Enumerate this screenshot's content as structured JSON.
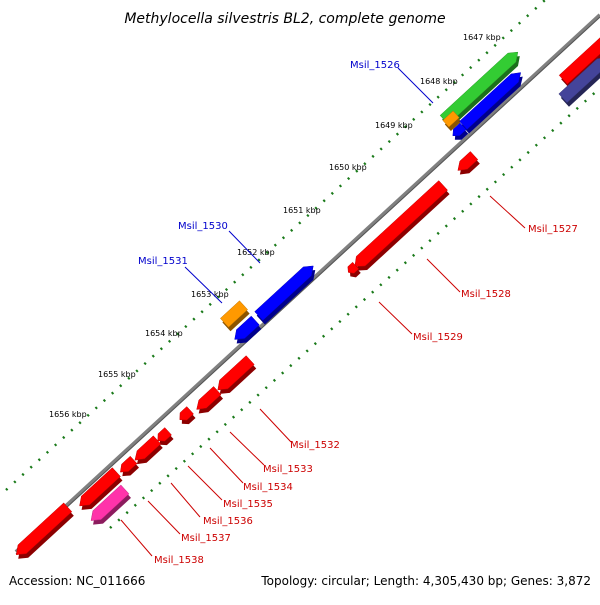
{
  "title": "Methylocella silvestris BL2, complete genome",
  "accession": "Accession: NC_011666",
  "summary": "Topology: circular; Length: 4,305,430 bp; Genes: 3,872",
  "colors": {
    "backbone": "#808080",
    "tick": "#1a7a1a",
    "forward_label": "#0000cc",
    "reverse_label": "#cc0000",
    "red": "#ff0000",
    "blue": "#0000ff",
    "green": "#33cc33",
    "orange": "#ff9900",
    "magenta": "#ff33aa",
    "purple": "#44449a"
  },
  "scale_labels": [
    "1647 kbp",
    "1648 kbp",
    "1649 kbp",
    "1650 kbp",
    "1651 kbp",
    "1652 kbp",
    "1653 kbp",
    "1654 kbp",
    "1655 kbp",
    "1656 kbp"
  ],
  "gene_labels": [
    {
      "text": "Msil_1526",
      "strand": "forward"
    },
    {
      "text": "Msil_1530",
      "strand": "forward"
    },
    {
      "text": "Msil_1531",
      "strand": "forward"
    },
    {
      "text": "Msil_1527",
      "strand": "reverse"
    },
    {
      "text": "Msil_1528",
      "strand": "reverse"
    },
    {
      "text": "Msil_1529",
      "strand": "reverse"
    },
    {
      "text": "Msil_1532",
      "strand": "reverse"
    },
    {
      "text": "Msil_1533",
      "strand": "reverse"
    },
    {
      "text": "Msil_1534",
      "strand": "reverse"
    },
    {
      "text": "Msil_1535",
      "strand": "reverse"
    },
    {
      "text": "Msil_1536",
      "strand": "reverse"
    },
    {
      "text": "Msil_1537",
      "strand": "reverse"
    },
    {
      "text": "Msil_1538",
      "strand": "reverse"
    }
  ]
}
